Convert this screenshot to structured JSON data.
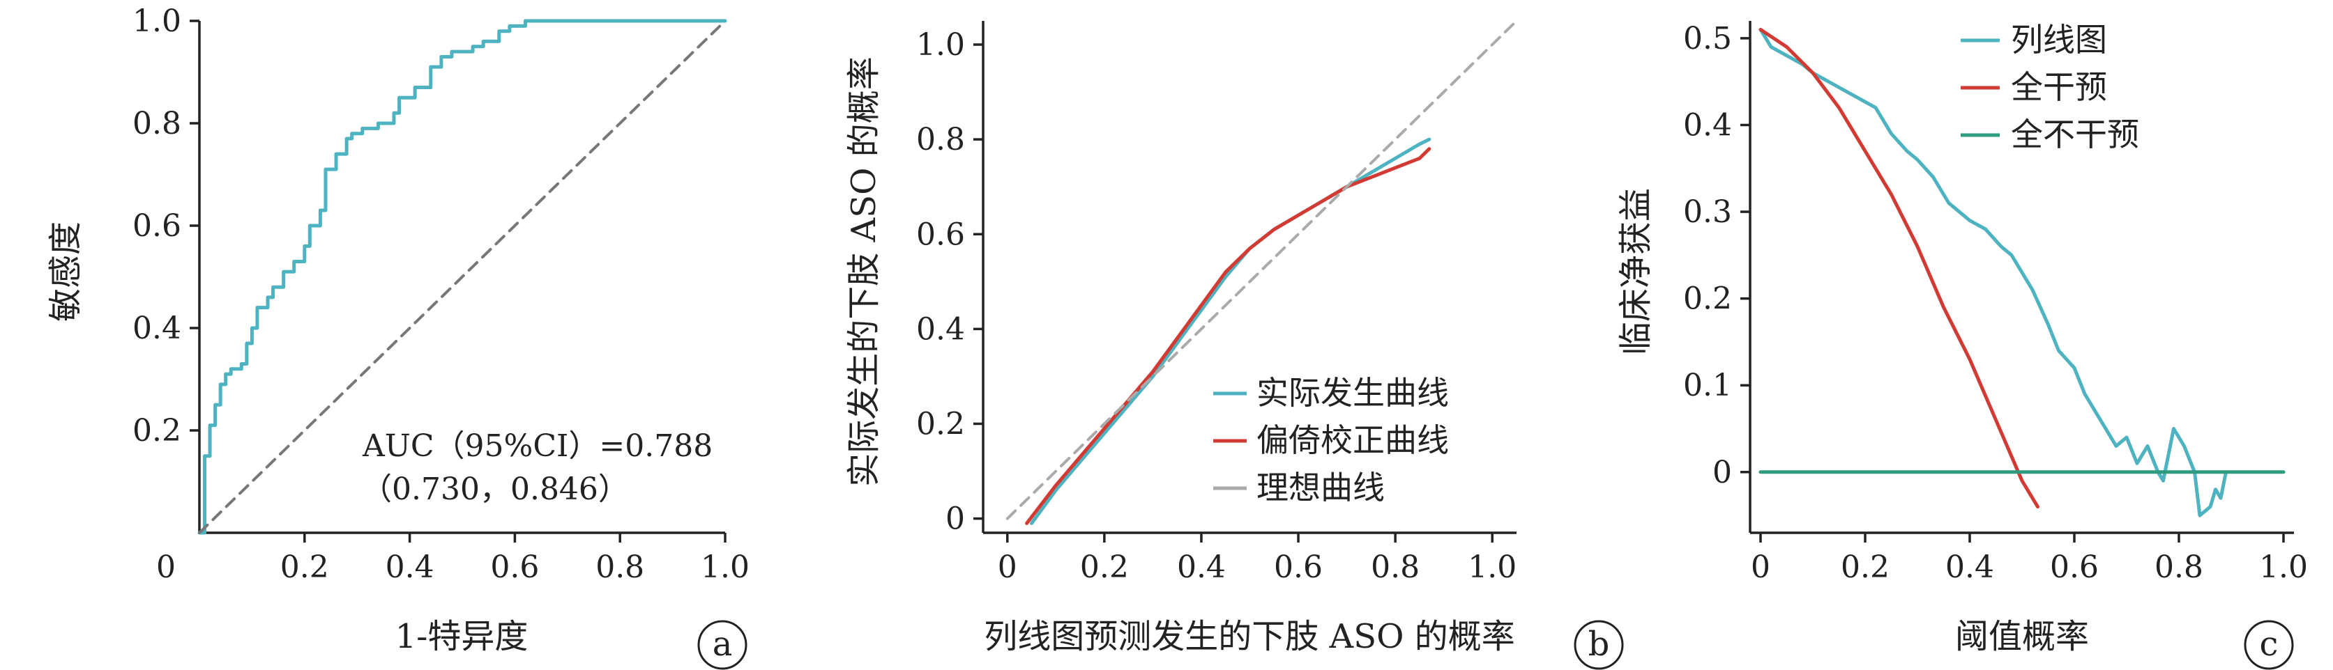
{
  "colors": {
    "teal": "#4eb3c0",
    "red": "#d23a34",
    "green": "#2e9a7e",
    "gray": "#aaaaaa",
    "darkgray": "#777777",
    "axis": "#222222"
  },
  "chart_data": [
    {
      "panel": "a",
      "type": "line",
      "xlabel": "1-特异度",
      "ylabel": "敏感度",
      "xlim": [
        0,
        1
      ],
      "ylim": [
        0,
        1
      ],
      "xticks": [
        "0.2",
        "0.4",
        "0.6",
        "0.8",
        "1.0"
      ],
      "yticks": [
        "0.2",
        "0.4",
        "0.6",
        "0.8",
        "1.0"
      ],
      "origin_label": "0",
      "annotation": [
        "AUC（95%CI）=0.788",
        "（0.730，0.846）"
      ],
      "series": [
        {
          "style": "roc",
          "color": "#4eb3c0",
          "x": [
            0,
            0.01,
            0.01,
            0.02,
            0.02,
            0.03,
            0.03,
            0.04,
            0.04,
            0.05,
            0.06,
            0.08,
            0.09,
            0.1,
            0.11,
            0.13,
            0.14,
            0.16,
            0.18,
            0.2,
            0.21,
            0.23,
            0.24,
            0.24,
            0.26,
            0.28,
            0.29,
            0.31,
            0.34,
            0.37,
            0.38,
            0.41,
            0.44,
            0.46,
            0.48,
            0.49,
            0.52,
            0.54,
            0.57,
            0.59,
            0.61,
            0.62,
            0.7,
            0.75,
            0.8,
            0.87,
            1.0
          ],
          "y": [
            0,
            0,
            0.15,
            0.15,
            0.21,
            0.21,
            0.25,
            0.25,
            0.29,
            0.31,
            0.32,
            0.33,
            0.37,
            0.4,
            0.44,
            0.46,
            0.48,
            0.51,
            0.53,
            0.56,
            0.6,
            0.63,
            0.65,
            0.71,
            0.74,
            0.77,
            0.78,
            0.79,
            0.8,
            0.82,
            0.85,
            0.87,
            0.91,
            0.93,
            0.94,
            0.94,
            0.95,
            0.96,
            0.98,
            0.99,
            0.99,
            1.0,
            1.0,
            1.0,
            1.0,
            1.0,
            1.0
          ]
        },
        {
          "style": "diagonal",
          "color": "#777777",
          "x": [
            0,
            1
          ],
          "y": [
            0,
            1
          ]
        }
      ]
    },
    {
      "panel": "b",
      "type": "line",
      "xlabel": "列线图预测发生的下肢 ASO 的概率",
      "ylabel": "实际发生的下肢 ASO 的概率",
      "xlim": [
        -0.05,
        1.05
      ],
      "ylim": [
        -0.03,
        1.05
      ],
      "xticks": [
        "0",
        "0.2",
        "0.4",
        "0.6",
        "0.8",
        "1.0"
      ],
      "yticks": [
        "0",
        "0.2",
        "0.4",
        "0.6",
        "0.8",
        "1.0"
      ],
      "series": [
        {
          "name": "实际发生曲线",
          "color": "#4eb3c0",
          "x": [
            0.05,
            0.1,
            0.15,
            0.2,
            0.25,
            0.3,
            0.35,
            0.4,
            0.45,
            0.5,
            0.55,
            0.6,
            0.65,
            0.7,
            0.75,
            0.8,
            0.85,
            0.87
          ],
          "y": [
            -0.01,
            0.06,
            0.12,
            0.18,
            0.24,
            0.3,
            0.37,
            0.44,
            0.51,
            0.57,
            0.61,
            0.64,
            0.67,
            0.7,
            0.73,
            0.76,
            0.79,
            0.8
          ]
        },
        {
          "name": "偏倚校正曲线",
          "color": "#d23a34",
          "x": [
            0.04,
            0.1,
            0.15,
            0.2,
            0.25,
            0.3,
            0.35,
            0.4,
            0.45,
            0.5,
            0.55,
            0.6,
            0.65,
            0.7,
            0.75,
            0.8,
            0.85,
            0.87
          ],
          "y": [
            -0.01,
            0.07,
            0.13,
            0.19,
            0.25,
            0.31,
            0.38,
            0.45,
            0.52,
            0.57,
            0.61,
            0.64,
            0.67,
            0.7,
            0.72,
            0.74,
            0.76,
            0.78
          ]
        },
        {
          "name": "理想曲线",
          "color": "#aaaaaa",
          "x": [
            0,
            1.05
          ],
          "y": [
            0,
            1.05
          ]
        }
      ]
    },
    {
      "panel": "c",
      "type": "line",
      "xlabel": "阈值概率",
      "ylabel": "临床净获益",
      "xlim": [
        -0.02,
        1.02
      ],
      "ylim": [
        -0.07,
        0.52
      ],
      "xticks": [
        "0",
        "0.2",
        "0.4",
        "0.6",
        "0.8",
        "1.0"
      ],
      "yticks": [
        "0",
        "0.1",
        "0.2",
        "0.3",
        "0.4",
        "0.5"
      ],
      "series": [
        {
          "name": "列线图",
          "color": "#4eb3c0",
          "x": [
            0,
            0.02,
            0.05,
            0.08,
            0.1,
            0.13,
            0.16,
            0.19,
            0.22,
            0.25,
            0.28,
            0.3,
            0.33,
            0.36,
            0.38,
            0.4,
            0.43,
            0.46,
            0.48,
            0.5,
            0.52,
            0.55,
            0.57,
            0.6,
            0.62,
            0.64,
            0.66,
            0.68,
            0.7,
            0.72,
            0.74,
            0.76,
            0.77,
            0.79,
            0.81,
            0.83,
            0.84,
            0.86,
            0.87,
            0.88,
            0.89
          ],
          "y": [
            0.51,
            0.49,
            0.48,
            0.47,
            0.46,
            0.45,
            0.44,
            0.43,
            0.42,
            0.39,
            0.37,
            0.36,
            0.34,
            0.31,
            0.3,
            0.29,
            0.28,
            0.26,
            0.25,
            0.23,
            0.21,
            0.17,
            0.14,
            0.12,
            0.09,
            0.07,
            0.05,
            0.03,
            0.04,
            0.01,
            0.03,
            0.0,
            -0.01,
            0.05,
            0.03,
            0.0,
            -0.05,
            -0.04,
            -0.02,
            -0.03,
            0.0
          ]
        },
        {
          "name": "全干预",
          "color": "#d23a34",
          "x": [
            0,
            0.05,
            0.1,
            0.15,
            0.2,
            0.25,
            0.3,
            0.35,
            0.4,
            0.45,
            0.5,
            0.53
          ],
          "y": [
            0.51,
            0.49,
            0.46,
            0.42,
            0.37,
            0.32,
            0.26,
            0.19,
            0.13,
            0.06,
            -0.01,
            -0.04
          ]
        },
        {
          "name": "全不干预",
          "color": "#2e9a7e",
          "x": [
            0,
            1.0
          ],
          "y": [
            0,
            0
          ]
        }
      ]
    }
  ]
}
